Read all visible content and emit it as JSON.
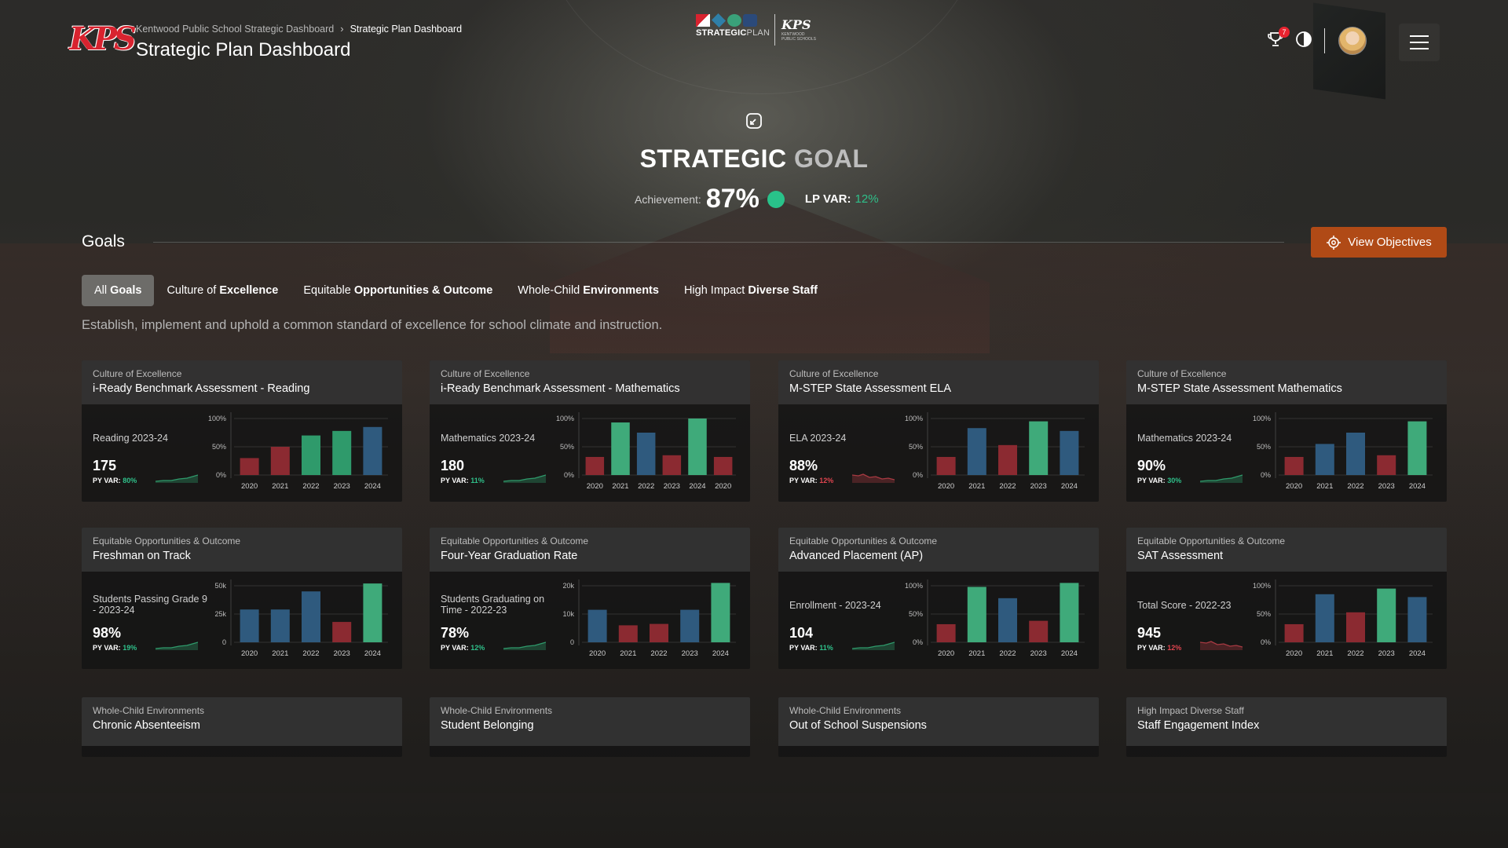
{
  "header": {
    "breadcrumb": [
      "Kentwood Public School Strategic Dashboard",
      "Strategic Plan Dashboard"
    ],
    "breadcrumb_sep": "›",
    "title": "Strategic Plan Dashboard",
    "logo_text": "KPS",
    "center_logo": {
      "strategic": "STRATEGIC",
      "plan": "PLAN",
      "kps": "KPS",
      "kentwood": "KENTWOOD",
      "kps_sub": "PUBLIC SCHOOLS"
    },
    "notification_count": "7",
    "icons": [
      "notification-icon",
      "contrast-icon",
      "menu-icon"
    ]
  },
  "goal": {
    "title_part1": "STRATEGIC",
    "title_part2": "GOAL",
    "achievement_label": "Achievement:",
    "achievement_value": "87%",
    "lp_var_label": "LP VAR:",
    "lp_var_value": "12%",
    "status_color": "#29c28a"
  },
  "goals": {
    "heading": "Goals",
    "view_button": "View Objectives",
    "tabs": [
      {
        "pre": "All ",
        "bold": "Goals",
        "active": true
      },
      {
        "pre": "Culture of ",
        "bold": "Excellence",
        "active": false
      },
      {
        "pre": "Equitable ",
        "bold": "Opportunities & Outcome",
        "active": false
      },
      {
        "pre": "Whole-Child ",
        "bold": "Environments",
        "active": false
      },
      {
        "pre": "High Impact ",
        "bold": "Diverse Staff",
        "active": false
      }
    ],
    "description": "Establish, implement and uphold a common standard of excellence for school climate and instruction."
  },
  "colors": {
    "red": "#8b2a31",
    "green": "#2f9a6b",
    "green_bright": "#3faa7a",
    "blue": "#2f5a7e",
    "accent": "#b04a16"
  },
  "cards": [
    {
      "category": "Culture of Excellence",
      "title": "i-Ready Benchmark Assessment -  Reading",
      "metric_label": "Reading 2023-24",
      "value": "175",
      "pyvar_label": "PY VAR:",
      "pyvar": "80%",
      "pyvar_trend": "up",
      "chart_data": {
        "type": "bar",
        "categories": [
          "2020",
          "2021",
          "2022",
          "2023",
          "2024"
        ],
        "values": [
          30,
          50,
          70,
          78,
          85
        ],
        "colors": [
          "red",
          "red",
          "green",
          "green",
          "blue"
        ],
        "yticks": [
          "100%",
          "50%",
          "0%"
        ],
        "ymax": 100
      }
    },
    {
      "category": "Culture of Excellence",
      "title": "i-Ready Benchmark Assessment -  Mathematics",
      "metric_label": "Mathematics 2023-24",
      "value": "180",
      "pyvar_label": "PY VAR:",
      "pyvar": "11%",
      "pyvar_trend": "up",
      "chart_data": {
        "type": "bar",
        "categories": [
          "2020",
          "2021",
          "2022",
          "2023",
          "2024",
          "2020"
        ],
        "values": [
          32,
          93,
          75,
          35,
          100,
          32
        ],
        "colors": [
          "red",
          "green_bright",
          "blue",
          "red",
          "green_bright",
          "red"
        ],
        "yticks": [
          "100%",
          "50%",
          "0%"
        ],
        "ymax": 100
      }
    },
    {
      "category": "Culture of Excellence",
      "title": "M-STEP State Assessment ELA",
      "metric_label": "ELA 2023-24",
      "value": "88%",
      "pyvar_label": "PY VAR:",
      "pyvar": "12%",
      "pyvar_trend": "down",
      "chart_data": {
        "type": "bar",
        "categories": [
          "2020",
          "2021",
          "2022",
          "2023",
          "2024"
        ],
        "values": [
          32,
          83,
          53,
          95,
          78
        ],
        "colors": [
          "red",
          "blue",
          "red",
          "green_bright",
          "blue"
        ],
        "yticks": [
          "100%",
          "50%",
          "0%"
        ],
        "ymax": 100
      }
    },
    {
      "category": "Culture of Excellence",
      "title": "M-STEP State Assessment Mathematics",
      "metric_label": "Mathematics 2023-24",
      "value": "90%",
      "pyvar_label": "PY VAR:",
      "pyvar": "30%",
      "pyvar_trend": "up",
      "chart_data": {
        "type": "bar",
        "categories": [
          "2020",
          "2021",
          "2022",
          "2023",
          "2024"
        ],
        "values": [
          32,
          55,
          75,
          35,
          95
        ],
        "colors": [
          "red",
          "blue",
          "blue",
          "red",
          "green_bright"
        ],
        "yticks": [
          "100%",
          "50%",
          "0%"
        ],
        "ymax": 100
      }
    },
    {
      "category": "Equitable Opportunities & Outcome",
      "title": "Freshman on Track",
      "metric_label": "Students Passing Grade 9 - 2023-24",
      "value": "98%",
      "pyvar_label": "PY VAR:",
      "pyvar": "19%",
      "pyvar_trend": "up",
      "chart_data": {
        "type": "bar",
        "categories": [
          "2020",
          "2021",
          "2022",
          "2023",
          "2024"
        ],
        "values": [
          29,
          29,
          45,
          18,
          52
        ],
        "colors": [
          "blue",
          "blue",
          "blue",
          "red",
          "green_bright"
        ],
        "yticks": [
          "50k",
          "25k",
          "0"
        ],
        "ymax": 50
      }
    },
    {
      "category": "Equitable Opportunities & Outcome",
      "title": "Four-Year Graduation Rate",
      "metric_label": "Students Graduating on Time - 2022-23",
      "value": "78%",
      "pyvar_label": "PY VAR:",
      "pyvar": "12%",
      "pyvar_trend": "up",
      "chart_data": {
        "type": "bar",
        "categories": [
          "2020",
          "2021",
          "2022",
          "2023",
          "2024"
        ],
        "values": [
          11.5,
          6,
          6.5,
          11.5,
          21
        ],
        "colors": [
          "blue",
          "red",
          "red",
          "blue",
          "green_bright"
        ],
        "yticks": [
          "20k",
          "10k",
          "0"
        ],
        "ymax": 20
      }
    },
    {
      "category": "Equitable Opportunities & Outcome",
      "title": "Advanced Placement (AP)",
      "metric_label": "Enrollment - 2023-24",
      "value": "104",
      "pyvar_label": "PY VAR:",
      "pyvar": "11%",
      "pyvar_trend": "up",
      "chart_data": {
        "type": "bar",
        "categories": [
          "2020",
          "2021",
          "2022",
          "2023",
          "2024"
        ],
        "values": [
          32,
          98,
          78,
          38,
          105
        ],
        "colors": [
          "red",
          "green_bright",
          "blue",
          "red",
          "green_bright"
        ],
        "yticks": [
          "100%",
          "50%",
          "0%"
        ],
        "ymax": 100
      }
    },
    {
      "category": "Equitable Opportunities & Outcome",
      "title": "SAT Assessment",
      "metric_label": "Total Score - 2022-23",
      "value": "945",
      "pyvar_label": "PY VAR:",
      "pyvar": "12%",
      "pyvar_trend": "down",
      "chart_data": {
        "type": "bar",
        "categories": [
          "2020",
          "2021",
          "2022",
          "2023",
          "2024"
        ],
        "values": [
          32,
          85,
          53,
          95,
          80
        ],
        "colors": [
          "red",
          "blue",
          "red",
          "green_bright",
          "blue"
        ],
        "yticks": [
          "100%",
          "50%",
          "0%"
        ],
        "ymax": 100
      }
    },
    {
      "category": "Whole-Child Environments",
      "title": "Chronic Absenteeism"
    },
    {
      "category": "Whole-Child Environments",
      "title": "Student Belonging"
    },
    {
      "category": "Whole-Child Environments",
      "title": "Out of School Suspensions"
    },
    {
      "category": "High Impact Diverse Staff",
      "title": "Staff Engagement Index"
    }
  ]
}
